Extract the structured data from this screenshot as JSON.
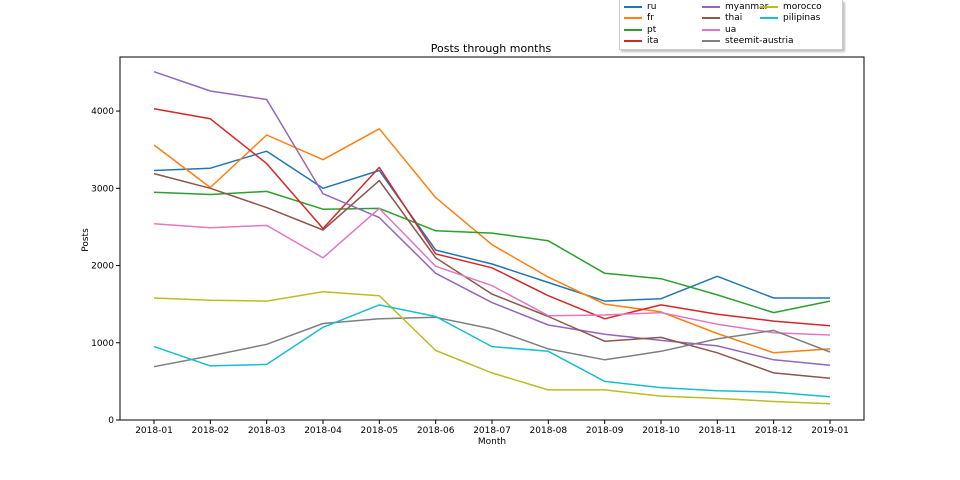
{
  "chart_data": {
    "type": "line",
    "title": "Posts through months",
    "xlabel": "Month",
    "ylabel": "Posts",
    "categories": [
      "2018-01",
      "2018-02",
      "2018-03",
      "2018-04",
      "2018-05",
      "2018-06",
      "2018-07",
      "2018-08",
      "2018-09",
      "2018-10",
      "2018-11",
      "2018-12",
      "2019-01"
    ],
    "ylim": [
      0,
      4700
    ],
    "yticks": [
      0,
      1000,
      2000,
      3000,
      4000
    ],
    "grid": false,
    "legend_position": "top-right, above plot",
    "series": [
      {
        "name": "ru",
        "color": "#1f77b4",
        "values": [
          3230,
          3260,
          3480,
          3000,
          3230,
          2200,
          2020,
          1780,
          1540,
          1570,
          1860,
          1580,
          1580
        ]
      },
      {
        "name": "fr",
        "color": "#ff7f0e",
        "values": [
          3560,
          3010,
          3690,
          3370,
          3770,
          2880,
          2270,
          1850,
          1500,
          1400,
          1120,
          870,
          920
        ]
      },
      {
        "name": "pt",
        "color": "#2ca02c",
        "values": [
          2950,
          2920,
          2960,
          2730,
          2740,
          2450,
          2420,
          2320,
          1900,
          1830,
          1620,
          1390,
          1540
        ]
      },
      {
        "name": "ita",
        "color": "#d62728",
        "values": [
          4030,
          3900,
          3320,
          2480,
          3270,
          2150,
          1970,
          1610,
          1310,
          1490,
          1370,
          1280,
          1220
        ]
      },
      {
        "name": "myanmar",
        "color": "#9467bd",
        "values": [
          4510,
          4260,
          4150,
          2930,
          2620,
          1900,
          1520,
          1230,
          1110,
          1030,
          960,
          780,
          710
        ]
      },
      {
        "name": "thai",
        "color": "#8c564b",
        "values": [
          3190,
          3000,
          2750,
          2460,
          3100,
          2100,
          1630,
          1340,
          1020,
          1070,
          870,
          610,
          540
        ]
      },
      {
        "name": "ua",
        "color": "#e377c2",
        "values": [
          2540,
          2490,
          2520,
          2100,
          2740,
          1990,
          1740,
          1350,
          1360,
          1390,
          1240,
          1130,
          1100
        ]
      },
      {
        "name": "steemit-austria",
        "color": "#7f7f7f",
        "values": [
          690,
          830,
          980,
          1250,
          1310,
          1330,
          1180,
          920,
          780,
          890,
          1050,
          1160,
          880
        ]
      },
      {
        "name": "morocco",
        "color": "#bcbd22",
        "values": [
          1580,
          1550,
          1540,
          1660,
          1610,
          900,
          610,
          390,
          390,
          310,
          280,
          240,
          210
        ]
      },
      {
        "name": "pilipinas",
        "color": "#17becf",
        "values": [
          950,
          700,
          720,
          1200,
          1490,
          1340,
          950,
          890,
          500,
          420,
          380,
          360,
          300
        ]
      }
    ]
  }
}
